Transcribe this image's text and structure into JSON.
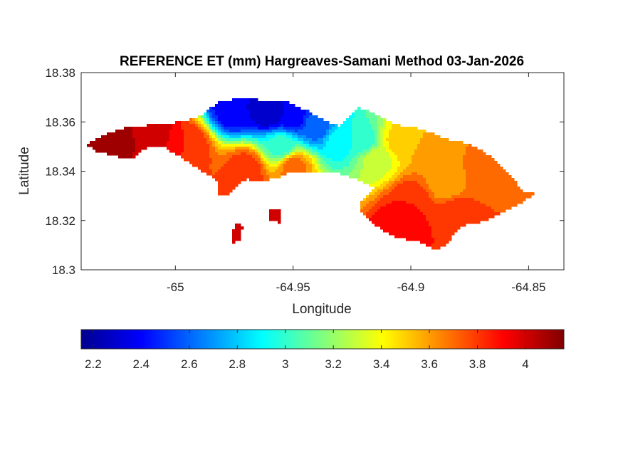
{
  "chart_data": {
    "type": "heatmap",
    "title": "REFERENCE ET (mm) Hargreaves-Samani Method  03-Jan-2026",
    "xlabel": "Longitude",
    "ylabel": "Latitude",
    "xlim": [
      -65.04,
      -64.835
    ],
    "ylim": [
      18.3,
      18.38
    ],
    "xticks": [
      "-65",
      "-64.95",
      "-64.9",
      "-64.85"
    ],
    "xtick_values": [
      -65,
      -64.95,
      -64.9,
      -64.85
    ],
    "yticks": [
      "18.38",
      "18.36",
      "18.34",
      "18.32",
      "18.3"
    ],
    "ytick_values": [
      18.38,
      18.36,
      18.34,
      18.32,
      18.3
    ],
    "grid": false,
    "colormap": "jet",
    "colorbar": {
      "placement": "bottom",
      "range": [
        2.15,
        4.16
      ],
      "ticks": [
        "2.2",
        "2.4",
        "2.6",
        "2.8",
        "3",
        "3.2",
        "3.4",
        "3.6",
        "3.8",
        "4"
      ],
      "tick_values": [
        2.2,
        2.4,
        2.6,
        2.8,
        3.0,
        3.2,
        3.4,
        3.6,
        3.8,
        4.0
      ]
    },
    "field_description": "Island-shaped field: lowest values (~2.2-2.6) north-central around lon -64.96, highest (~4.1) in the far west; eastern lobe ~3.6-3.9",
    "islands": [
      {
        "name": "main-island",
        "outline": [
          [
            -65.038,
            18.351
          ],
          [
            -65.03,
            18.355
          ],
          [
            -65.02,
            18.358
          ],
          [
            -65.008,
            18.359
          ],
          [
            -64.998,
            18.36
          ],
          [
            -64.99,
            18.362
          ],
          [
            -64.982,
            18.368
          ],
          [
            -64.97,
            18.37
          ],
          [
            -64.96,
            18.368
          ],
          [
            -64.952,
            18.368
          ],
          [
            -64.945,
            18.365
          ],
          [
            -64.935,
            18.36
          ],
          [
            -64.93,
            18.358
          ],
          [
            -64.922,
            18.366
          ],
          [
            -64.915,
            18.363
          ],
          [
            -64.907,
            18.359
          ],
          [
            -64.895,
            18.357
          ],
          [
            -64.885,
            18.353
          ],
          [
            -64.875,
            18.351
          ],
          [
            -64.866,
            18.346
          ],
          [
            -64.858,
            18.338
          ],
          [
            -64.852,
            18.332
          ],
          [
            -64.847,
            18.331
          ],
          [
            -64.852,
            18.328
          ],
          [
            -64.858,
            18.325
          ],
          [
            -64.866,
            18.321
          ],
          [
            -64.872,
            18.319
          ],
          [
            -64.878,
            18.318
          ],
          [
            -64.882,
            18.314
          ],
          [
            -64.885,
            18.31
          ],
          [
            -64.889,
            18.308
          ],
          [
            -64.895,
            18.311
          ],
          [
            -64.9,
            18.312
          ],
          [
            -64.905,
            18.313
          ],
          [
            -64.91,
            18.315
          ],
          [
            -64.915,
            18.318
          ],
          [
            -64.92,
            18.322
          ],
          [
            -64.922,
            18.326
          ],
          [
            -64.919,
            18.33
          ],
          [
            -64.915,
            18.333
          ],
          [
            -64.921,
            18.336
          ],
          [
            -64.93,
            18.339
          ],
          [
            -64.94,
            18.34
          ],
          [
            -64.95,
            18.34
          ],
          [
            -64.958,
            18.337
          ],
          [
            -64.965,
            18.336
          ],
          [
            -64.97,
            18.337
          ],
          [
            -64.975,
            18.333
          ],
          [
            -64.978,
            18.33
          ],
          [
            -64.982,
            18.33
          ],
          [
            -64.982,
            18.335
          ],
          [
            -64.985,
            18.338
          ],
          [
            -64.992,
            18.342
          ],
          [
            -64.998,
            18.346
          ],
          [
            -65.005,
            18.35
          ],
          [
            -65.012,
            18.35
          ],
          [
            -65.018,
            18.345
          ],
          [
            -65.025,
            18.346
          ],
          [
            -65.033,
            18.348
          ]
        ]
      },
      {
        "name": "islet-1",
        "outline": [
          [
            -64.96,
            18.32
          ],
          [
            -64.955,
            18.319
          ],
          [
            -64.955,
            18.325
          ],
          [
            -64.96,
            18.324
          ]
        ]
      },
      {
        "name": "islet-2",
        "outline": [
          [
            -64.976,
            18.311
          ],
          [
            -64.973,
            18.312
          ],
          [
            -64.971,
            18.318
          ],
          [
            -64.975,
            18.319
          ]
        ]
      }
    ],
    "value_centers": [
      {
        "lon": -65.025,
        "lat": 18.353,
        "value": 4.08
      },
      {
        "lon": -65.01,
        "lat": 18.355,
        "value": 4.02
      },
      {
        "lon": -64.995,
        "lat": 18.35,
        "value": 3.85
      },
      {
        "lon": -64.97,
        "lat": 18.341,
        "value": 3.82
      },
      {
        "lon": -64.96,
        "lat": 18.364,
        "value": 2.25
      },
      {
        "lon": -64.95,
        "lat": 18.362,
        "value": 2.4
      },
      {
        "lon": -64.975,
        "lat": 18.365,
        "value": 2.35
      },
      {
        "lon": -64.94,
        "lat": 18.358,
        "value": 2.6
      },
      {
        "lon": -64.955,
        "lat": 18.35,
        "value": 3.0
      },
      {
        "lon": -64.93,
        "lat": 18.352,
        "value": 2.9
      },
      {
        "lon": -64.92,
        "lat": 18.352,
        "value": 3.0
      },
      {
        "lon": -64.915,
        "lat": 18.345,
        "value": 3.3
      },
      {
        "lon": -64.905,
        "lat": 18.352,
        "value": 3.5
      },
      {
        "lon": -64.89,
        "lat": 18.345,
        "value": 3.65
      },
      {
        "lon": -64.87,
        "lat": 18.338,
        "value": 3.7
      },
      {
        "lon": -64.885,
        "lat": 18.336,
        "value": 3.55
      },
      {
        "lon": -64.9,
        "lat": 18.328,
        "value": 3.85
      },
      {
        "lon": -64.905,
        "lat": 18.318,
        "value": 3.95
      },
      {
        "lon": -64.88,
        "lat": 18.322,
        "value": 3.85
      },
      {
        "lon": -64.86,
        "lat": 18.33,
        "value": 3.75
      },
      {
        "lon": -64.95,
        "lat": 18.342,
        "value": 3.7
      },
      {
        "lon": -64.96,
        "lat": 18.322,
        "value": 4.05
      },
      {
        "lon": -64.974,
        "lat": 18.315,
        "value": 4.05
      }
    ]
  }
}
